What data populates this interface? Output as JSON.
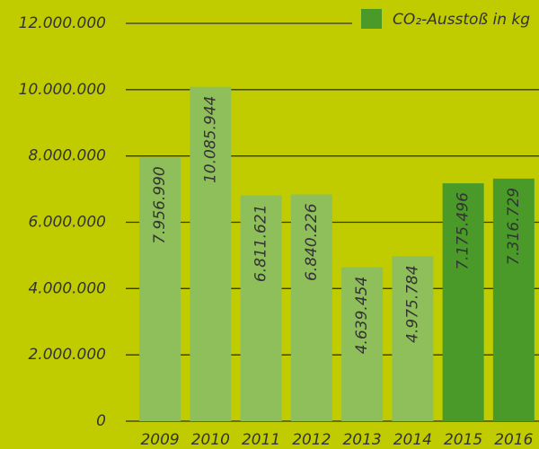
{
  "chart_data": {
    "type": "bar",
    "categories": [
      "2009",
      "2010",
      "2011",
      "2012",
      "2013",
      "2014",
      "2015",
      "2016"
    ],
    "series": [
      {
        "name": "CO₂-Ausstoß in kg",
        "color": "#4a9a2a",
        "values": [
          7956990,
          10085944,
          6811621,
          6840226,
          4639454,
          4975784,
          7175496,
          7316729
        ],
        "value_labels": [
          "7.956.990",
          "10.085.944",
          "6.811.621",
          "6.840.226",
          "4.639.454",
          "4.975.784",
          "7.175.496",
          "7.316.729"
        ]
      }
    ],
    "bar_colors": [
      "#8fbf5a",
      "#8fbf5a",
      "#8fbf5a",
      "#8fbf5a",
      "#8fbf5a",
      "#8fbf5a",
      "#4a9a2a",
      "#4a9a2a"
    ],
    "ylim": [
      0,
      12000000
    ],
    "yticks": [
      0,
      {
        "value": 2000000,
        "label": "2.000.000"
      },
      {
        "value": 4000000,
        "label": "4.000.000"
      },
      {
        "value": 6000000,
        "label": "6.000.000"
      },
      {
        "value": 8000000,
        "label": "8.000.000"
      },
      {
        "value": 10000000,
        "label": "10.000.000"
      },
      {
        "value": 12000000,
        "label": "12.000.000"
      }
    ],
    "grid": true,
    "legend": "top-right"
  }
}
